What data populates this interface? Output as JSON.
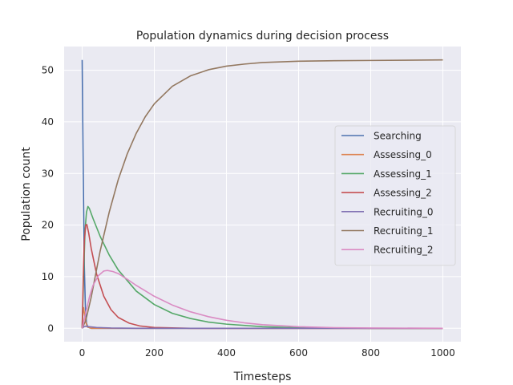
{
  "chart_data": {
    "type": "line",
    "title": "Population dynamics during decision process",
    "xlabel": "Timesteps",
    "ylabel": "Population count",
    "xlim": [
      -50,
      1050
    ],
    "ylim": [
      -2.6,
      54.6
    ],
    "xticks": [
      0,
      200,
      400,
      600,
      800,
      1000
    ],
    "yticks": [
      0,
      10,
      20,
      30,
      40,
      50
    ],
    "grid": true,
    "legend_position": "center-right",
    "series": [
      {
        "name": "Searching",
        "color": "#4c72b0",
        "points": [
          [
            0,
            52
          ],
          [
            3,
            30
          ],
          [
            6,
            12
          ],
          [
            9,
            4
          ],
          [
            12,
            1
          ],
          [
            16,
            0.2
          ],
          [
            25,
            0
          ],
          [
            1000,
            0
          ]
        ]
      },
      {
        "name": "Assessing_0",
        "color": "#dd8452",
        "points": [
          [
            0,
            0
          ],
          [
            2,
            3
          ],
          [
            4,
            4
          ],
          [
            6,
            3
          ],
          [
            9,
            1.5
          ],
          [
            14,
            0.3
          ],
          [
            25,
            0
          ],
          [
            1000,
            0
          ]
        ]
      },
      {
        "name": "Assessing_1",
        "color": "#55a868",
        "points": [
          [
            0,
            0
          ],
          [
            4,
            10
          ],
          [
            8,
            19
          ],
          [
            12,
            22.5
          ],
          [
            16,
            23.6
          ],
          [
            20,
            23.2
          ],
          [
            30,
            21.3
          ],
          [
            50,
            17.8
          ],
          [
            75,
            14.2
          ],
          [
            100,
            11.3
          ],
          [
            150,
            7.2
          ],
          [
            200,
            4.6
          ],
          [
            250,
            2.9
          ],
          [
            300,
            1.9
          ],
          [
            350,
            1.2
          ],
          [
            400,
            0.8
          ],
          [
            500,
            0.3
          ],
          [
            600,
            0.1
          ],
          [
            800,
            0
          ],
          [
            1000,
            0
          ]
        ]
      },
      {
        "name": "Assessing_2",
        "color": "#c44e52",
        "points": [
          [
            0,
            0
          ],
          [
            3,
            10
          ],
          [
            6,
            17
          ],
          [
            10,
            20
          ],
          [
            13,
            20.1
          ],
          [
            18,
            18.5
          ],
          [
            25,
            15.5
          ],
          [
            40,
            10.5
          ],
          [
            60,
            6.2
          ],
          [
            80,
            3.6
          ],
          [
            100,
            2.1
          ],
          [
            130,
            1
          ],
          [
            160,
            0.45
          ],
          [
            200,
            0.15
          ],
          [
            300,
            0
          ],
          [
            1000,
            0
          ]
        ]
      },
      {
        "name": "Recruiting_0",
        "color": "#8172b3",
        "points": [
          [
            0,
            0
          ],
          [
            5,
            0.3
          ],
          [
            10,
            0.4
          ],
          [
            20,
            0.3
          ],
          [
            40,
            0.15
          ],
          [
            80,
            0.05
          ],
          [
            150,
            0
          ],
          [
            1000,
            0
          ]
        ]
      },
      {
        "name": "Recruiting_1",
        "color": "#937860",
        "points": [
          [
            0,
            0
          ],
          [
            10,
            1.5
          ],
          [
            25,
            6
          ],
          [
            50,
            15
          ],
          [
            75,
            22.5
          ],
          [
            100,
            28.8
          ],
          [
            125,
            33.8
          ],
          [
            150,
            37.8
          ],
          [
            175,
            41
          ],
          [
            200,
            43.5
          ],
          [
            250,
            46.9
          ],
          [
            300,
            48.9
          ],
          [
            350,
            50.1
          ],
          [
            400,
            50.8
          ],
          [
            450,
            51.2
          ],
          [
            500,
            51.5
          ],
          [
            600,
            51.75
          ],
          [
            700,
            51.85
          ],
          [
            800,
            51.9
          ],
          [
            1000,
            52
          ]
        ]
      },
      {
        "name": "Recruiting_2",
        "color": "#da8bc3",
        "points": [
          [
            0,
            0
          ],
          [
            10,
            3
          ],
          [
            20,
            6
          ],
          [
            30,
            8.3
          ],
          [
            45,
            10.2
          ],
          [
            60,
            11.1
          ],
          [
            70,
            11.2
          ],
          [
            85,
            11
          ],
          [
            100,
            10.6
          ],
          [
            125,
            9.5
          ],
          [
            150,
            8.3
          ],
          [
            200,
            6.2
          ],
          [
            250,
            4.5
          ],
          [
            300,
            3.2
          ],
          [
            350,
            2.25
          ],
          [
            400,
            1.55
          ],
          [
            450,
            1.05
          ],
          [
            500,
            0.7
          ],
          [
            600,
            0.3
          ],
          [
            700,
            0.12
          ],
          [
            800,
            0.05
          ],
          [
            1000,
            0
          ]
        ]
      }
    ]
  }
}
